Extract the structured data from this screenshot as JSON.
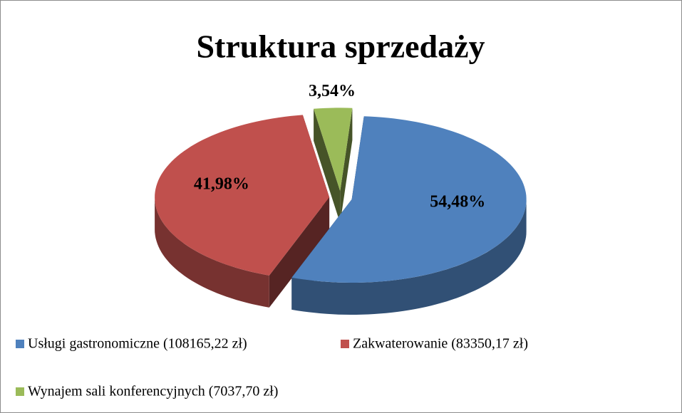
{
  "chart_data": {
    "type": "pie",
    "title": "Struktura sprzedaży",
    "categories": [
      "Usługi gastronomiczne (108165,22 zł)",
      "Zakwaterowanie (83350,17 zł)",
      "Wynajem sali konferencyjnych (7037,70 zł)"
    ],
    "values": [
      54.48,
      41.98,
      3.54
    ],
    "value_labels": [
      "54,48%",
      "41,98%",
      "3,54%"
    ],
    "colors": [
      "#4f81bd",
      "#c0504d",
      "#9bbb59"
    ],
    "legend": "bottom"
  }
}
